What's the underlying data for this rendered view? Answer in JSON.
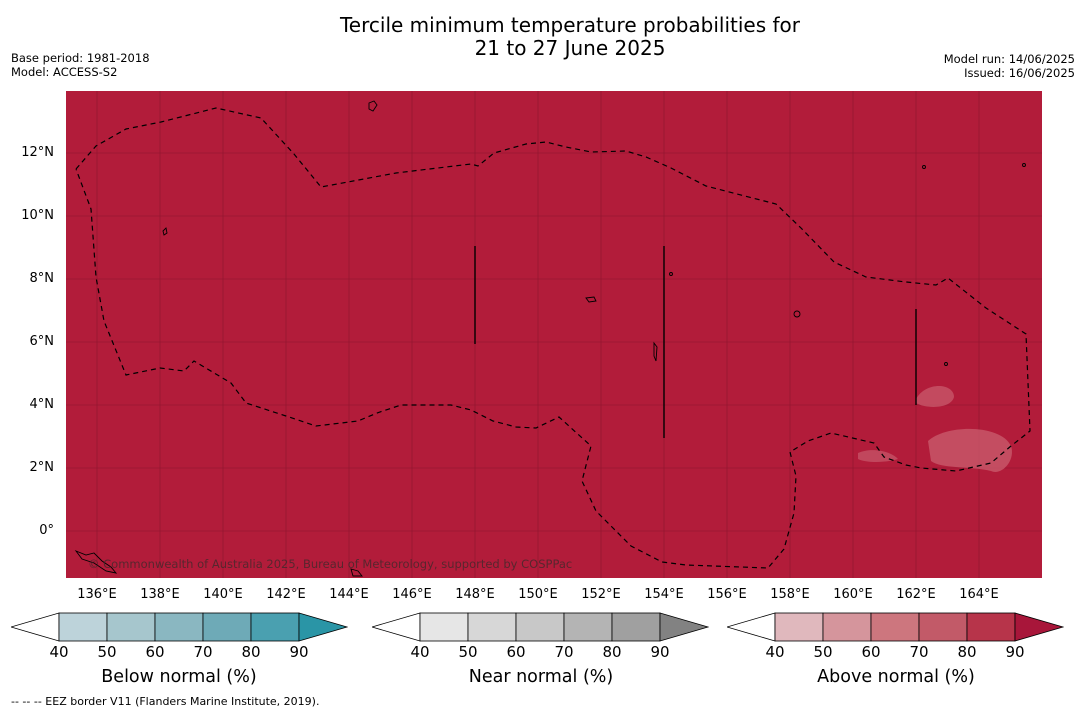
{
  "title_line1": "Tercile minimum temperature probabilities for",
  "title_line2": "21 to 27 June 2025",
  "base_period": "Base period: 1981-2018",
  "model": "Model: ACCESS-S2",
  "model_run": "Model run: 14/06/2025",
  "issued": "Issued: 16/06/2025",
  "copyright": "© Commonwealth of Australia 2025, Bureau of Meteorology, supported by COSPPac",
  "footnote": "--  --  -- EEZ border V11 (Flanders Marine Institute, 2019).",
  "map": {
    "fill_color": "#b21c3a",
    "lat_labels": [
      "12°N",
      "10°N",
      "8°N",
      "6°N",
      "4°N",
      "2°N",
      "0°"
    ],
    "lon_labels": [
      "136°E",
      "138°E",
      "140°E",
      "142°E",
      "144°E",
      "146°E",
      "148°E",
      "150°E",
      "152°E",
      "154°E",
      "156°E",
      "158°E",
      "160°E",
      "162°E",
      "164°E"
    ]
  },
  "colorbars": [
    {
      "title": "Below normal (%)",
      "ticks": [
        "40",
        "50",
        "60",
        "70",
        "80",
        "90"
      ],
      "colors": [
        "#ffffff",
        "#bdd3da",
        "#a6c6cd",
        "#8ab7c1",
        "#6eaab7",
        "#4aa0b0",
        "#2a95a6"
      ]
    },
    {
      "title": "Near normal (%)",
      "ticks": [
        "40",
        "50",
        "60",
        "70",
        "80",
        "90"
      ],
      "colors": [
        "#ffffff",
        "#e6e6e6",
        "#d7d7d7",
        "#c8c8c8",
        "#b4b4b4",
        "#a0a0a0",
        "#828282"
      ]
    },
    {
      "title": "Above normal (%)",
      "ticks": [
        "40",
        "50",
        "60",
        "70",
        "80",
        "90"
      ],
      "colors": [
        "#ffffff",
        "#e0b8bd",
        "#d5959c",
        "#cd767e",
        "#c25a68",
        "#b7344a",
        "#a8163a"
      ]
    }
  ]
}
